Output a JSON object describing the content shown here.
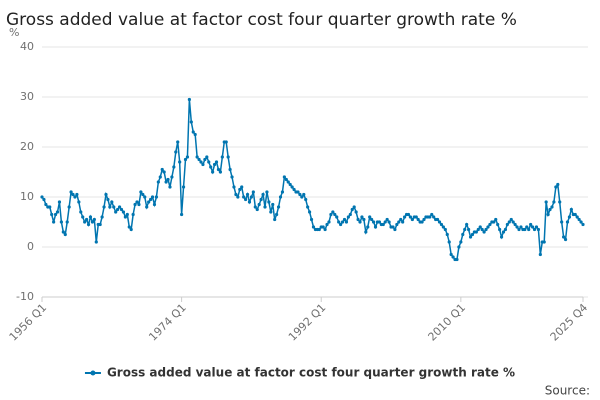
{
  "chart_data": {
    "type": "line",
    "title": "Gross added value at factor cost four quarter growth rate %",
    "y_unit": "%",
    "source": "Source:",
    "categories": [
      "1956 Q1",
      null,
      null,
      null,
      null,
      null,
      null,
      null,
      null,
      null,
      null,
      null,
      null,
      null,
      null,
      null,
      null,
      null,
      null,
      null,
      null,
      null,
      null,
      null,
      null,
      null,
      null,
      null,
      null,
      null,
      null,
      null,
      null,
      null,
      null,
      null,
      null,
      null,
      null,
      null,
      null,
      null,
      null,
      null,
      null,
      null,
      null,
      null,
      null,
      null,
      null,
      null,
      null,
      null,
      null,
      null,
      null,
      null,
      null,
      null,
      null,
      null,
      null,
      null,
      null,
      null,
      null,
      null,
      null,
      null,
      null,
      null,
      "1974 Q1",
      null,
      null,
      null,
      null,
      null,
      null,
      null,
      null,
      null,
      null,
      null,
      null,
      null,
      null,
      null,
      null,
      null,
      null,
      null,
      null,
      null,
      null,
      null,
      null,
      null,
      null,
      null,
      null,
      null,
      null,
      null,
      null,
      null,
      null,
      null,
      null,
      null,
      null,
      null,
      null,
      null,
      null,
      null,
      null,
      null,
      null,
      null,
      null,
      null,
      null,
      null,
      null,
      null,
      null,
      null,
      null,
      null,
      null,
      null,
      null,
      null,
      null,
      null,
      null,
      null,
      null,
      null,
      null,
      null,
      null,
      null,
      "1992 Q1",
      null,
      null,
      null,
      null,
      null,
      null,
      null,
      null,
      null,
      null,
      null,
      null,
      null,
      null,
      null,
      null,
      null,
      null,
      null,
      null,
      null,
      null,
      null,
      null,
      null,
      null,
      null,
      null,
      null,
      null,
      null,
      null,
      null,
      null,
      null,
      null,
      null,
      null,
      null,
      null,
      null,
      null,
      null,
      null,
      null,
      null,
      null,
      null,
      null,
      null,
      null,
      null,
      null,
      null,
      null,
      null,
      null,
      null,
      null,
      null,
      null,
      null,
      null,
      null,
      null,
      null,
      null,
      null,
      null,
      null,
      null,
      "2010 Q1",
      null,
      null,
      null,
      null,
      null,
      null,
      null,
      null,
      null,
      null,
      null,
      null,
      null,
      null,
      null,
      null,
      null,
      null,
      null,
      null,
      null,
      null,
      null,
      null,
      null,
      null,
      null,
      null,
      null,
      null,
      null,
      null,
      null,
      null,
      null,
      null,
      null,
      null,
      null,
      null,
      null,
      null,
      null,
      null,
      null,
      null,
      null,
      null,
      null,
      null,
      null,
      null,
      null,
      null,
      null,
      null,
      null,
      null,
      null,
      null,
      null,
      null,
      "2025 Q4"
    ],
    "series": [
      {
        "name": "Gross added value at factor cost four quarter growth rate %",
        "color": "#0075b0",
        "values": [
          10,
          9.5,
          8.5,
          8,
          8,
          6.5,
          5,
          6.5,
          7,
          9,
          5,
          3,
          2.5,
          5,
          8,
          11,
          10.5,
          10,
          10.5,
          9,
          7,
          6,
          5,
          5.5,
          4.5,
          6,
          5,
          5.5,
          1,
          4.5,
          4.5,
          6,
          8,
          10.5,
          9.5,
          8,
          9,
          8,
          7,
          7.5,
          8,
          7.5,
          7,
          6,
          6.5,
          4,
          3.5,
          6.5,
          8.5,
          9,
          8.5,
          11,
          10.5,
          10,
          8,
          9,
          9.5,
          10,
          8.5,
          10,
          13,
          14,
          15.5,
          15,
          13,
          13.5,
          12,
          14,
          16,
          19,
          21,
          17,
          6.5,
          12,
          17.5,
          18,
          29.5,
          25,
          23,
          22.5,
          18,
          17.5,
          17,
          16.5,
          17.5,
          18,
          17,
          16,
          15,
          16.5,
          17,
          15.5,
          15,
          18,
          21,
          21,
          18,
          15.5,
          14,
          12,
          10.5,
          10,
          11.5,
          12,
          10,
          9.5,
          10.5,
          9,
          10,
          11,
          8,
          7.5,
          8.5,
          9.5,
          10.5,
          8,
          11,
          9,
          7,
          8.5,
          5.5,
          6.5,
          8,
          10,
          11,
          14,
          13.5,
          13,
          12.5,
          12,
          11.5,
          11,
          11,
          10.5,
          10,
          10.5,
          9.5,
          8,
          7,
          5.5,
          4,
          3.5,
          3.5,
          3.5,
          4,
          4,
          3.5,
          4.5,
          5,
          6.5,
          7,
          6.5,
          6,
          5,
          4.5,
          5,
          5.5,
          5,
          6,
          6.5,
          7.5,
          8,
          7,
          5.5,
          5,
          6,
          5.5,
          3,
          4,
          6,
          5.5,
          5,
          4,
          5,
          5,
          4.5,
          4.5,
          5,
          5.5,
          5,
          4,
          4,
          3.5,
          4.5,
          5,
          5.5,
          5,
          6,
          6.5,
          6.5,
          6,
          5.5,
          6,
          6,
          5.5,
          5,
          5,
          5.5,
          6,
          6,
          6,
          6.5,
          6,
          5.5,
          5.5,
          5,
          4.5,
          4,
          3.5,
          2.5,
          1,
          -1.5,
          -2,
          -2.5,
          -2.5,
          0,
          1,
          2.5,
          3.5,
          4.5,
          3.5,
          2,
          2.5,
          3,
          3,
          3.5,
          4,
          3.5,
          3,
          3.5,
          4,
          4.5,
          5,
          5,
          5.5,
          4.5,
          3.5,
          2,
          3,
          3.5,
          4.5,
          5,
          5.5,
          5,
          4.5,
          4,
          3.5,
          4,
          3.5,
          3.5,
          4,
          3.5,
          4.5,
          4,
          3.5,
          4,
          3.5,
          -1.5,
          1,
          1,
          9,
          6.5,
          7.5,
          8,
          9,
          12,
          12.5,
          9,
          5,
          2,
          1.5,
          5,
          6,
          7.5,
          6.5,
          6.5,
          6,
          5.5,
          5,
          4.5
        ]
      }
    ],
    "ylim": [
      -10,
      40
    ],
    "yticks": [
      -10,
      0,
      10,
      20,
      30,
      40
    ],
    "grid": true,
    "legend": "bottom"
  }
}
